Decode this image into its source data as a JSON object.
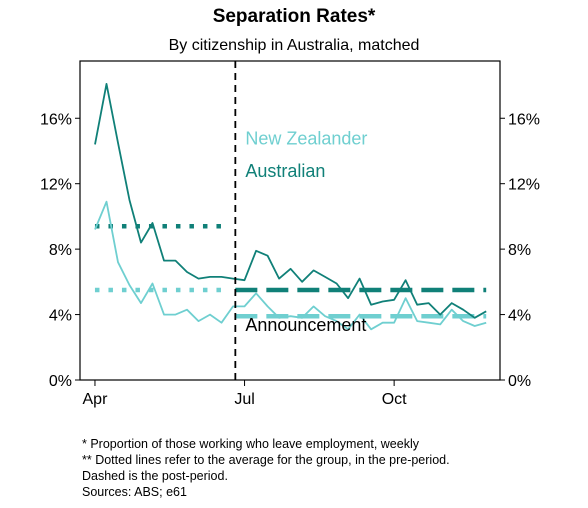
{
  "chart_data": {
    "type": "line",
    "title": "Separation Rates*",
    "subtitle": "By citizenship in Australia, matched",
    "y_tick_labels": [
      "0%",
      "4%",
      "8%",
      "12%",
      "16%"
    ],
    "y_ticks": [
      0,
      4,
      8,
      12,
      16
    ],
    "ylim": [
      0,
      19.5
    ],
    "x_tick_labels": [
      "Apr",
      "Jul",
      "Oct"
    ],
    "x_tick_weeks": [
      0,
      13,
      26
    ],
    "xlim": [
      -1.3,
      35.2
    ],
    "announcement_week": 12.2,
    "announcement_label": "Announcement",
    "legend_position": "inside-center",
    "grid": false,
    "series": [
      {
        "name": "New Zealander",
        "color": "#6fcfd0",
        "weeks": [
          0,
          1,
          2,
          3,
          4,
          5,
          6,
          7,
          8,
          9,
          10,
          11,
          12,
          13,
          14,
          15,
          16,
          17,
          18,
          19,
          20,
          21,
          22,
          23,
          24,
          25,
          26,
          27,
          28,
          29,
          30,
          31,
          32,
          33,
          34
        ],
        "values": [
          9.2,
          10.9,
          7.2,
          5.8,
          4.7,
          5.9,
          4.0,
          4.0,
          4.3,
          3.6,
          4.0,
          3.5,
          4.5,
          4.5,
          5.3,
          4.5,
          3.8,
          3.9,
          3.8,
          4.5,
          3.9,
          3.6,
          3.1,
          4.0,
          3.1,
          3.5,
          3.5,
          5.0,
          3.6,
          3.5,
          3.4,
          4.3,
          3.6,
          3.3,
          3.5
        ],
        "pre_average": 5.5,
        "post_average": 3.9
      },
      {
        "name": "Australian",
        "color": "#108078",
        "weeks": [
          0,
          1,
          2,
          3,
          4,
          5,
          6,
          7,
          8,
          9,
          10,
          11,
          12,
          13,
          14,
          15,
          16,
          17,
          18,
          19,
          20,
          21,
          22,
          23,
          24,
          25,
          26,
          27,
          28,
          29,
          30,
          31,
          32,
          33,
          34
        ],
        "values": [
          14.4,
          18.1,
          14.5,
          11.0,
          8.4,
          9.6,
          7.3,
          7.3,
          6.6,
          6.2,
          6.3,
          6.3,
          6.2,
          6.1,
          7.9,
          7.6,
          6.2,
          6.8,
          6.0,
          6.7,
          6.3,
          5.9,
          5.0,
          6.2,
          4.6,
          4.8,
          4.9,
          6.1,
          4.6,
          4.7,
          4.0,
          4.7,
          4.3,
          3.8,
          4.2
        ],
        "pre_average": 9.4,
        "post_average": 5.5
      }
    ]
  },
  "notes": [
    "* Proportion of those working who leave employment, weekly",
    "** Dotted lines refer to the average for the group, in the pre-period.",
    "Dashed is the post-period.",
    "Sources: ABS; e61"
  ]
}
